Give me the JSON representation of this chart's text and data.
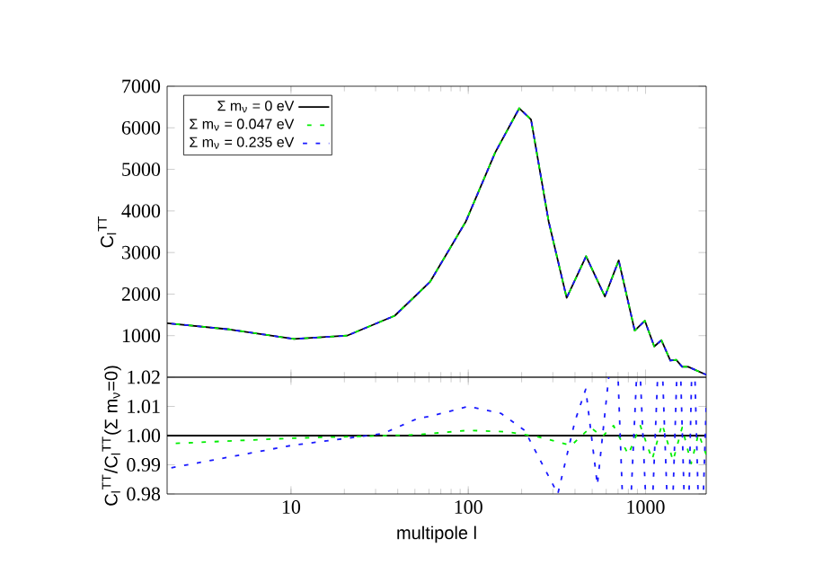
{
  "chart_data": [
    {
      "type": "line",
      "ylabel": "C$_{l}$$^{TT}$",
      "log": "x",
      "xlim": [
        2,
        2200
      ],
      "xticks": [
        10,
        100,
        1000
      ],
      "ylim": [
        0,
        7000
      ],
      "yticks": [
        1000,
        2000,
        3000,
        4000,
        5000,
        6000,
        7000
      ],
      "tick_labels": "y",
      "legend": "top left",
      "grid": false,
      "x": [
        2,
        4.5,
        10.4,
        20.7,
        38.5,
        61,
        97,
        142,
        194,
        226,
        284,
        359,
        462,
        590,
        706,
        869,
        991,
        1120,
        1230,
        1380,
        1490,
        1610,
        1740,
        2200
      ],
      "series": [
        {
          "name": "Σ m$_{ν}$ = 0 eV",
          "color": "#000000",
          "line_style": "solid",
          "values": [
            1300,
            1150,
            920,
            1000,
            1480,
            2300,
            3750,
            5410,
            6470,
            6200,
            3750,
            1910,
            2910,
            1940,
            2810,
            1120,
            1360,
            740,
            890,
            400,
            420,
            250,
            250,
            60
          ]
        },
        {
          "name": "Σ m$_{ν}$ = 0.047 eV",
          "color": "#00ee00",
          "line_style": "dashed",
          "values": [
            1300,
            1150,
            920,
            1000,
            1480,
            2300,
            3750,
            5410,
            6470,
            6200,
            3750,
            1910,
            2910,
            1940,
            2810,
            1120,
            1360,
            740,
            890,
            400,
            420,
            250,
            250,
            60
          ]
        },
        {
          "name": "Σ m$_{ν}$ = 0.235 eV",
          "color": "#1a1aff",
          "line_style": "dashed",
          "values": [
            1300,
            1150,
            920,
            1000,
            1480,
            2300,
            3750,
            5410,
            6470,
            6200,
            3750,
            1910,
            2910,
            1940,
            2810,
            1120,
            1360,
            740,
            890,
            400,
            420,
            250,
            250,
            60
          ]
        }
      ]
    },
    {
      "type": "line",
      "xlabel": "multipole l",
      "ylabel": "C$_{l}$$^{TT}$/C$_{l}$$^{TT}$(Σ m$_{ν}$=0)",
      "log": "x",
      "xlim": [
        2,
        2200
      ],
      "xticks": [
        10,
        100,
        1000
      ],
      "ylim": [
        0.98,
        1.02
      ],
      "yticks": [
        0.98,
        0.99,
        {
          "value": 1.0,
          "label": "1.00"
        },
        1.01,
        1.02
      ],
      "grid": false,
      "series": [
        {
          "color": "#000000",
          "line_style": "solid",
          "x": [
            2,
            2200
          ],
          "values": [
            1.0,
            1.0
          ]
        },
        {
          "color": "#00ee00",
          "line_style": "dashed",
          "x": [
            2,
            10,
            52,
            100,
            166,
            244,
            381,
            489,
            570,
            660,
            800,
            935,
            1090,
            1240,
            1430,
            1610,
            1810,
            1990,
            2200
          ],
          "values": [
            0.9972,
            0.9991,
            1.0003,
            1.0018,
            1.0013,
            0.9997,
            0.9966,
            1.0028,
            0.9997,
            1.0034,
            0.9935,
            1.0034,
            0.9918,
            1.004,
            0.9914,
            1.0028,
            0.9904,
            1.0007,
            0.9935
          ]
        },
        {
          "color": "#1a1aff",
          "line_style": "dashed",
          "x": [
            2,
            10,
            33,
            52,
            60,
            100,
            153,
            208,
            320,
            400,
            460,
            535,
            620,
            660,
            700,
            740,
            785,
            830,
            890,
            910,
            935,
            1000,
            1050,
            1100,
            1170,
            1200,
            1250,
            1320,
            1380,
            1430,
            1500,
            1540,
            1580,
            1650,
            1700,
            1760,
            1820,
            1860,
            1900,
            1980,
            2050,
            2120,
            2200
          ],
          "values": [
            0.9887,
            0.9966,
            1.0007,
            1.0059,
            1.0065,
            1.01,
            1.0076,
            1.0018,
            0.98,
            1.005,
            1.0159,
            0.9831,
            1.02,
            null,
            1.02,
            0.98,
            null,
            0.98,
            1.02,
            null,
            1.02,
            0.98,
            null,
            0.98,
            1.02,
            null,
            1.02,
            0.98,
            null,
            0.98,
            1.02,
            null,
            1.02,
            0.98,
            null,
            0.98,
            1.02,
            null,
            1.02,
            0.98,
            null,
            0.98,
            1.01
          ]
        }
      ]
    }
  ]
}
